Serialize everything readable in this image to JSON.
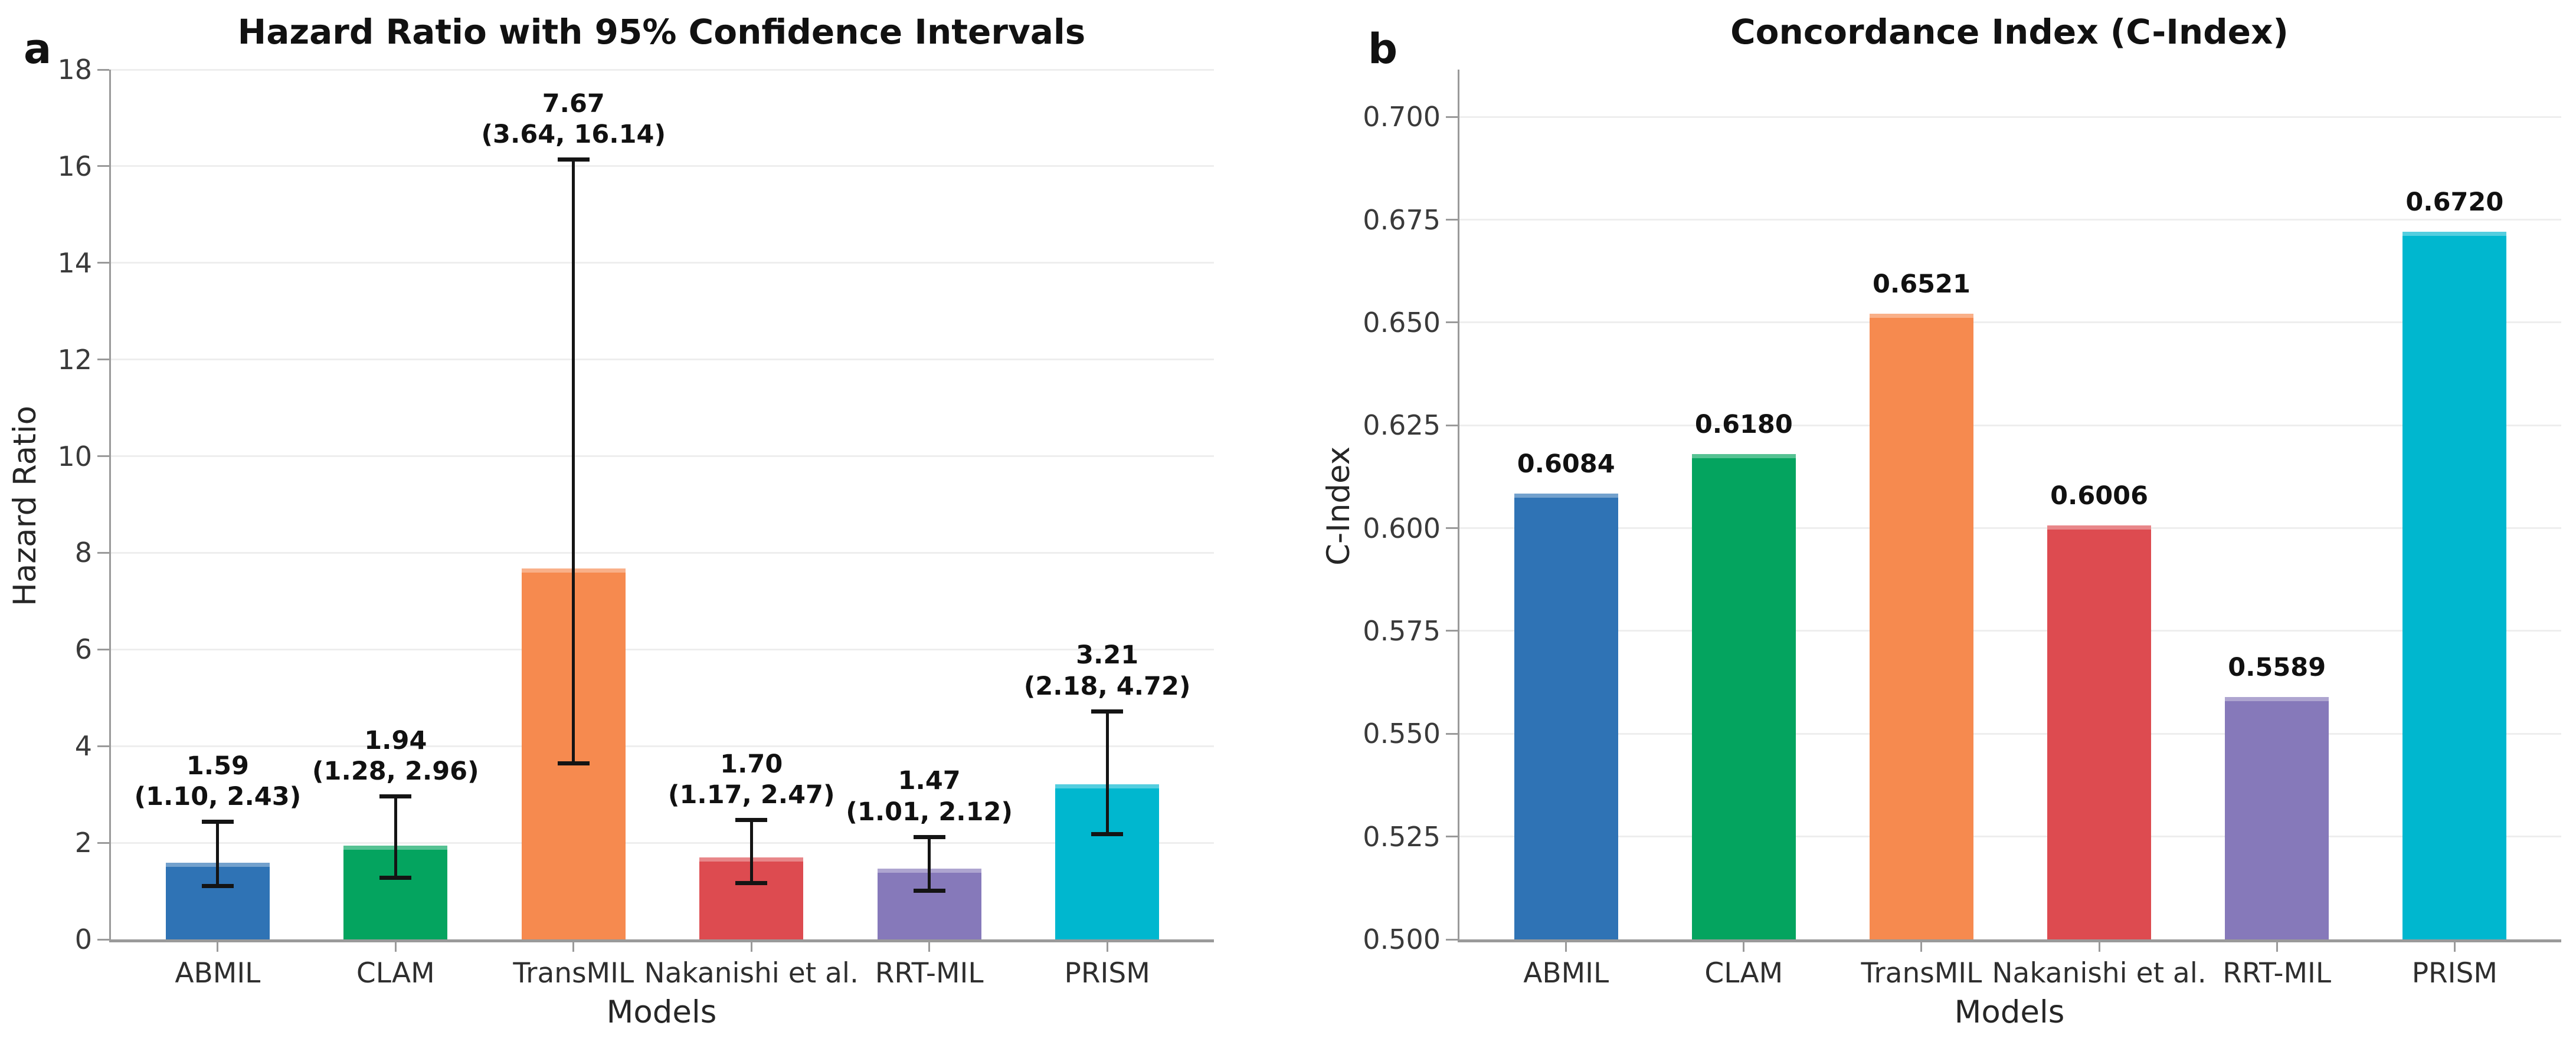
{
  "figure": {
    "panels": [
      {
        "corner_label": "a"
      },
      {
        "corner_label": "b"
      }
    ]
  },
  "palette": {
    "bar_blue": "#2f73b5",
    "bar_green": "#04a45f",
    "bar_orange": "#f68a4f",
    "bar_red": "#dd4b50",
    "bar_purple": "#8679ba",
    "bar_cyan": "#00b7cf",
    "errorbar": "#141414",
    "gridline": "#eeeeee",
    "axis_spine": "#9a9a9a"
  },
  "chart_data": [
    {
      "type": "bar",
      "panel": "a",
      "title": "Hazard Ratio with 95% Confidence Intervals",
      "xlabel": "Models",
      "ylabel": "Hazard Ratio",
      "categories": [
        "ABMIL",
        "CLAM",
        "TransMIL",
        "Nakanishi et al.",
        "RRT-MIL",
        "PRISM"
      ],
      "values": [
        1.59,
        1.94,
        7.67,
        1.7,
        1.47,
        3.21
      ],
      "ci_low": [
        1.1,
        1.28,
        3.64,
        1.17,
        1.01,
        2.18
      ],
      "ci_high": [
        2.43,
        2.96,
        16.14,
        2.47,
        2.12,
        4.72
      ],
      "bar_labels": [
        [
          "1.59",
          "(1.10, 2.43)"
        ],
        [
          "1.94",
          "(1.28, 2.96)"
        ],
        [
          "7.67",
          "(3.64, 16.14)"
        ],
        [
          "1.70",
          "(1.17, 2.47)"
        ],
        [
          "1.47",
          "(1.01, 2.12)"
        ],
        [
          "3.21",
          "(2.18, 4.72)"
        ]
      ],
      "bar_colors": [
        "#2f73b5",
        "#04a45f",
        "#f68a4f",
        "#dd4b50",
        "#8679ba",
        "#00b7cf"
      ],
      "ylim": [
        0,
        18
      ],
      "ytick_values": [
        0,
        2,
        4,
        6,
        8,
        10,
        12,
        14,
        16,
        18
      ],
      "ytick_labels": [
        "0",
        "2",
        "4",
        "6",
        "8",
        "10",
        "12",
        "14",
        "16",
        "18"
      ],
      "grid": true,
      "legend": null
    },
    {
      "type": "bar",
      "panel": "b",
      "title": "Concordance Index (C-Index)",
      "xlabel": "Models",
      "ylabel": "C-Index",
      "categories": [
        "ABMIL",
        "CLAM",
        "TransMIL",
        "Nakanishi et al.",
        "RRT-MIL",
        "PRISM"
      ],
      "values": [
        0.6084,
        0.618,
        0.6521,
        0.6006,
        0.5589,
        0.672
      ],
      "bar_labels": [
        "0.6084",
        "0.6180",
        "0.6521",
        "0.6006",
        "0.5589",
        "0.6720"
      ],
      "bar_colors": [
        "#2f73b5",
        "#04a45f",
        "#f68a4f",
        "#dd4b50",
        "#8679ba",
        "#00b7cf"
      ],
      "ylim": [
        0.5,
        0.7115
      ],
      "ytick_values": [
        0.5,
        0.525,
        0.55,
        0.575,
        0.6,
        0.625,
        0.65,
        0.675,
        0.7
      ],
      "ytick_labels": [
        "0.500",
        "0.525",
        "0.550",
        "0.575",
        "0.600",
        "0.625",
        "0.650",
        "0.675",
        "0.700"
      ],
      "grid": true,
      "legend": null
    }
  ]
}
